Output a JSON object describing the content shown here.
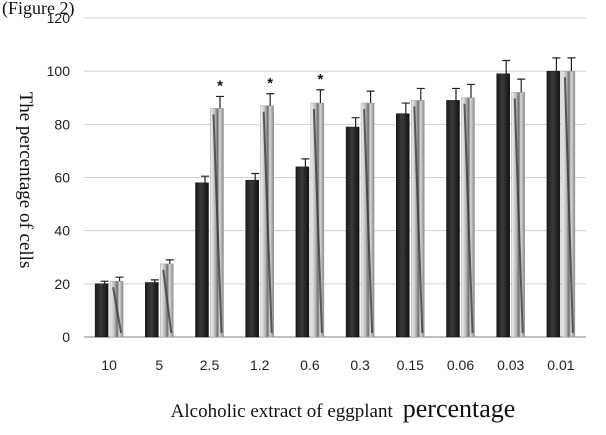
{
  "header_fragment": "(Figure 2)",
  "chart_data": {
    "type": "bar",
    "title": "",
    "xlabel": "Alcoholic extract of eggplant",
    "xlabel_suffix": "percentage",
    "ylabel": "The percentage of cells",
    "ylim": [
      0,
      120
    ],
    "yticks": [
      0,
      20,
      40,
      60,
      80,
      100,
      120
    ],
    "categories": [
      "10",
      "5",
      "2.5",
      "1.2",
      "0.6",
      "0.3",
      "0.15",
      "0.06",
      "0.03",
      "0.01"
    ],
    "series": [
      {
        "fill": "dark",
        "values": [
          20,
          20.5,
          58,
          59,
          64,
          79,
          84,
          89,
          99,
          100
        ],
        "errors": [
          1,
          1,
          2.5,
          2.5,
          3,
          3.5,
          4,
          4.5,
          5,
          5
        ]
      },
      {
        "fill": "light",
        "values": [
          21,
          27.5,
          86,
          87,
          88,
          88,
          89,
          90,
          92,
          100
        ],
        "errors": [
          1.5,
          1.5,
          4.5,
          4.5,
          5,
          4.5,
          4.5,
          5,
          5,
          5
        ]
      }
    ],
    "annotations": [
      {
        "category": "2.5",
        "series": 1,
        "text": "*"
      },
      {
        "category": "1.2",
        "series": 1,
        "text": "*"
      },
      {
        "category": "0.6",
        "series": 1,
        "text": "*"
      }
    ],
    "grid": true,
    "legend": "none"
  }
}
